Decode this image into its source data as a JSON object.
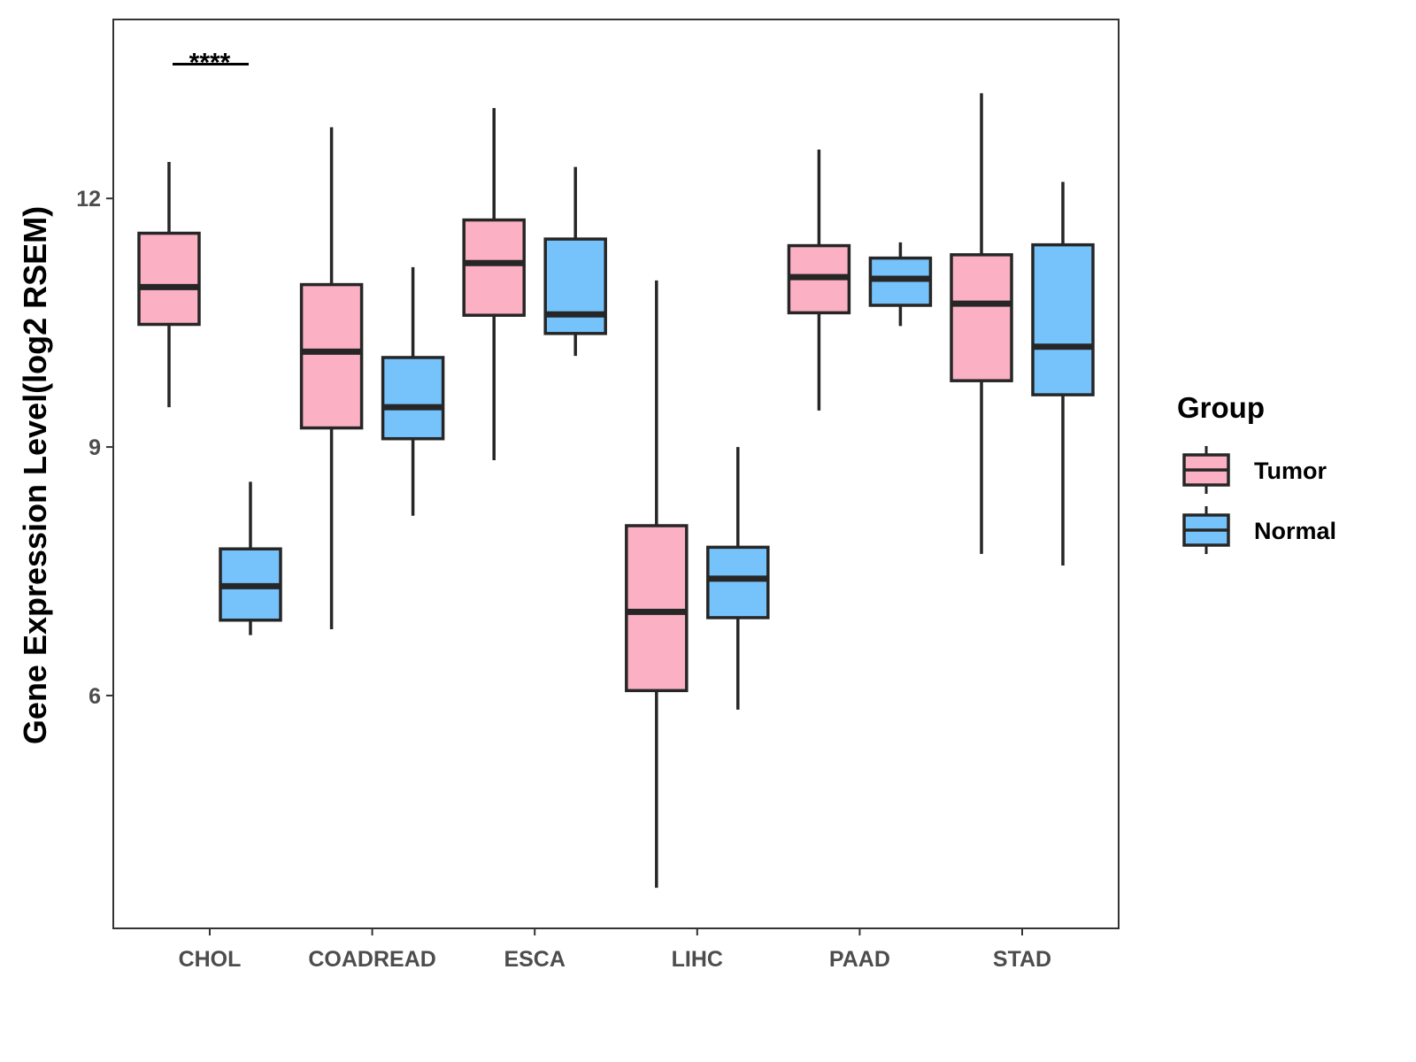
{
  "chart_data": {
    "type": "boxplot",
    "title": "",
    "xlabel": "",
    "ylabel": "Gene Expression Level(log2 RSEM)",
    "ylim": [
      3.19,
      14.16
    ],
    "yticks": [
      6,
      9,
      12
    ],
    "categories": [
      "CHOL",
      "COADREAD",
      "ESCA",
      "LIHC",
      "PAAD",
      "STAD"
    ],
    "legend": {
      "title": "Group",
      "position": "right"
    },
    "series": [
      {
        "name": "Tumor",
        "color": "#FBB1C3",
        "boxes": [
          {
            "min": 9.48,
            "q1": 10.48,
            "median": 10.93,
            "q3": 11.58,
            "max": 12.44
          },
          {
            "min": 6.8,
            "q1": 9.23,
            "median": 10.15,
            "q3": 10.96,
            "max": 12.86
          },
          {
            "min": 8.84,
            "q1": 10.59,
            "median": 11.22,
            "q3": 11.74,
            "max": 13.09
          },
          {
            "min": 3.68,
            "q1": 6.06,
            "median": 7.01,
            "q3": 8.05,
            "max": 11.01
          },
          {
            "min": 9.44,
            "q1": 10.62,
            "median": 11.05,
            "q3": 11.43,
            "max": 12.59
          },
          {
            "min": 7.71,
            "q1": 9.8,
            "median": 10.73,
            "q3": 11.32,
            "max": 13.27
          }
        ]
      },
      {
        "name": "Normal",
        "color": "#76C2FA",
        "boxes": [
          {
            "min": 6.73,
            "q1": 6.91,
            "median": 7.32,
            "q3": 7.77,
            "max": 8.58
          },
          {
            "min": 8.17,
            "q1": 9.1,
            "median": 9.48,
            "q3": 10.08,
            "max": 11.17
          },
          {
            "min": 10.1,
            "q1": 10.37,
            "median": 10.6,
            "q3": 11.51,
            "max": 12.38
          },
          {
            "min": 5.83,
            "q1": 6.94,
            "median": 7.41,
            "q3": 7.79,
            "max": 9.0
          },
          {
            "min": 10.46,
            "q1": 10.71,
            "median": 11.03,
            "q3": 11.28,
            "max": 11.47
          },
          {
            "min": 7.57,
            "q1": 9.63,
            "median": 10.21,
            "q3": 11.44,
            "max": 12.2
          }
        ]
      }
    ],
    "annotations": [
      {
        "category": "CHOL",
        "text": "****",
        "y": 13.62
      }
    ]
  }
}
